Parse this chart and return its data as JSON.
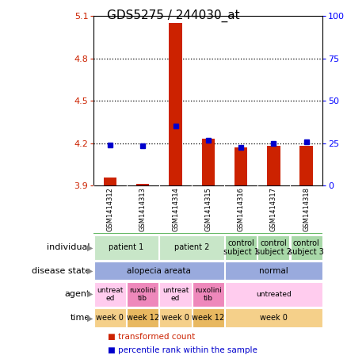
{
  "title": "GDS5275 / 244030_at",
  "samples": [
    "GSM1414312",
    "GSM1414313",
    "GSM1414314",
    "GSM1414315",
    "GSM1414316",
    "GSM1414317",
    "GSM1414318"
  ],
  "red_values": [
    3.96,
    3.91,
    5.05,
    4.23,
    4.17,
    4.18,
    4.18
  ],
  "blue_values": [
    4.19,
    4.18,
    4.32,
    4.22,
    4.17,
    4.2,
    4.21
  ],
  "red_baseline": 3.9,
  "ylim": [
    3.9,
    5.1
  ],
  "y2lim": [
    0,
    100
  ],
  "yticks": [
    3.9,
    4.2,
    4.5,
    4.8,
    5.1
  ],
  "y2ticks": [
    0,
    25,
    50,
    75,
    100
  ],
  "dotted_lines": [
    4.2,
    4.5,
    4.8
  ],
  "row_labels": [
    "individual",
    "disease state",
    "agent",
    "time"
  ],
  "individual_groups": [
    {
      "label": "patient 1",
      "span": [
        0,
        1
      ],
      "color": "#c8e6c8"
    },
    {
      "label": "patient 2",
      "span": [
        2,
        3
      ],
      "color": "#c8e6c8"
    },
    {
      "label": "control\nsubject 1",
      "span": [
        4,
        4
      ],
      "color": "#a8d8a8"
    },
    {
      "label": "control\nsubject 2",
      "span": [
        5,
        5
      ],
      "color": "#a8d8a8"
    },
    {
      "label": "control\nsubject 3",
      "span": [
        6,
        6
      ],
      "color": "#a8d8a8"
    }
  ],
  "disease_groups": [
    {
      "label": "alopecia areata",
      "span": [
        0,
        3
      ],
      "color": "#99aadd"
    },
    {
      "label": "normal",
      "span": [
        4,
        6
      ],
      "color": "#99aadd"
    }
  ],
  "agent_groups": [
    {
      "label": "untreat\ned",
      "span": [
        0,
        0
      ],
      "color": "#ffccee"
    },
    {
      "label": "ruxolini\ntib",
      "span": [
        1,
        1
      ],
      "color": "#ee88bb"
    },
    {
      "label": "untreat\ned",
      "span": [
        2,
        2
      ],
      "color": "#ffccee"
    },
    {
      "label": "ruxolini\ntib",
      "span": [
        3,
        3
      ],
      "color": "#ee88bb"
    },
    {
      "label": "untreated",
      "span": [
        4,
        6
      ],
      "color": "#ffccee"
    }
  ],
  "time_groups": [
    {
      "label": "week 0",
      "span": [
        0,
        0
      ],
      "color": "#f5d08a"
    },
    {
      "label": "week 12",
      "span": [
        1,
        1
      ],
      "color": "#e8b860"
    },
    {
      "label": "week 0",
      "span": [
        2,
        2
      ],
      "color": "#f5d08a"
    },
    {
      "label": "week 12",
      "span": [
        3,
        3
      ],
      "color": "#e8b860"
    },
    {
      "label": "week 0",
      "span": [
        4,
        6
      ],
      "color": "#f5d08a"
    }
  ],
  "legend_items": [
    {
      "color": "#cc2200",
      "label": "transformed count"
    },
    {
      "color": "#0000cc",
      "label": "percentile rank within the sample"
    }
  ],
  "bar_color": "#cc2200",
  "dot_color": "#0000cc",
  "sample_bg": "#cccccc",
  "bar_width": 0.4
}
